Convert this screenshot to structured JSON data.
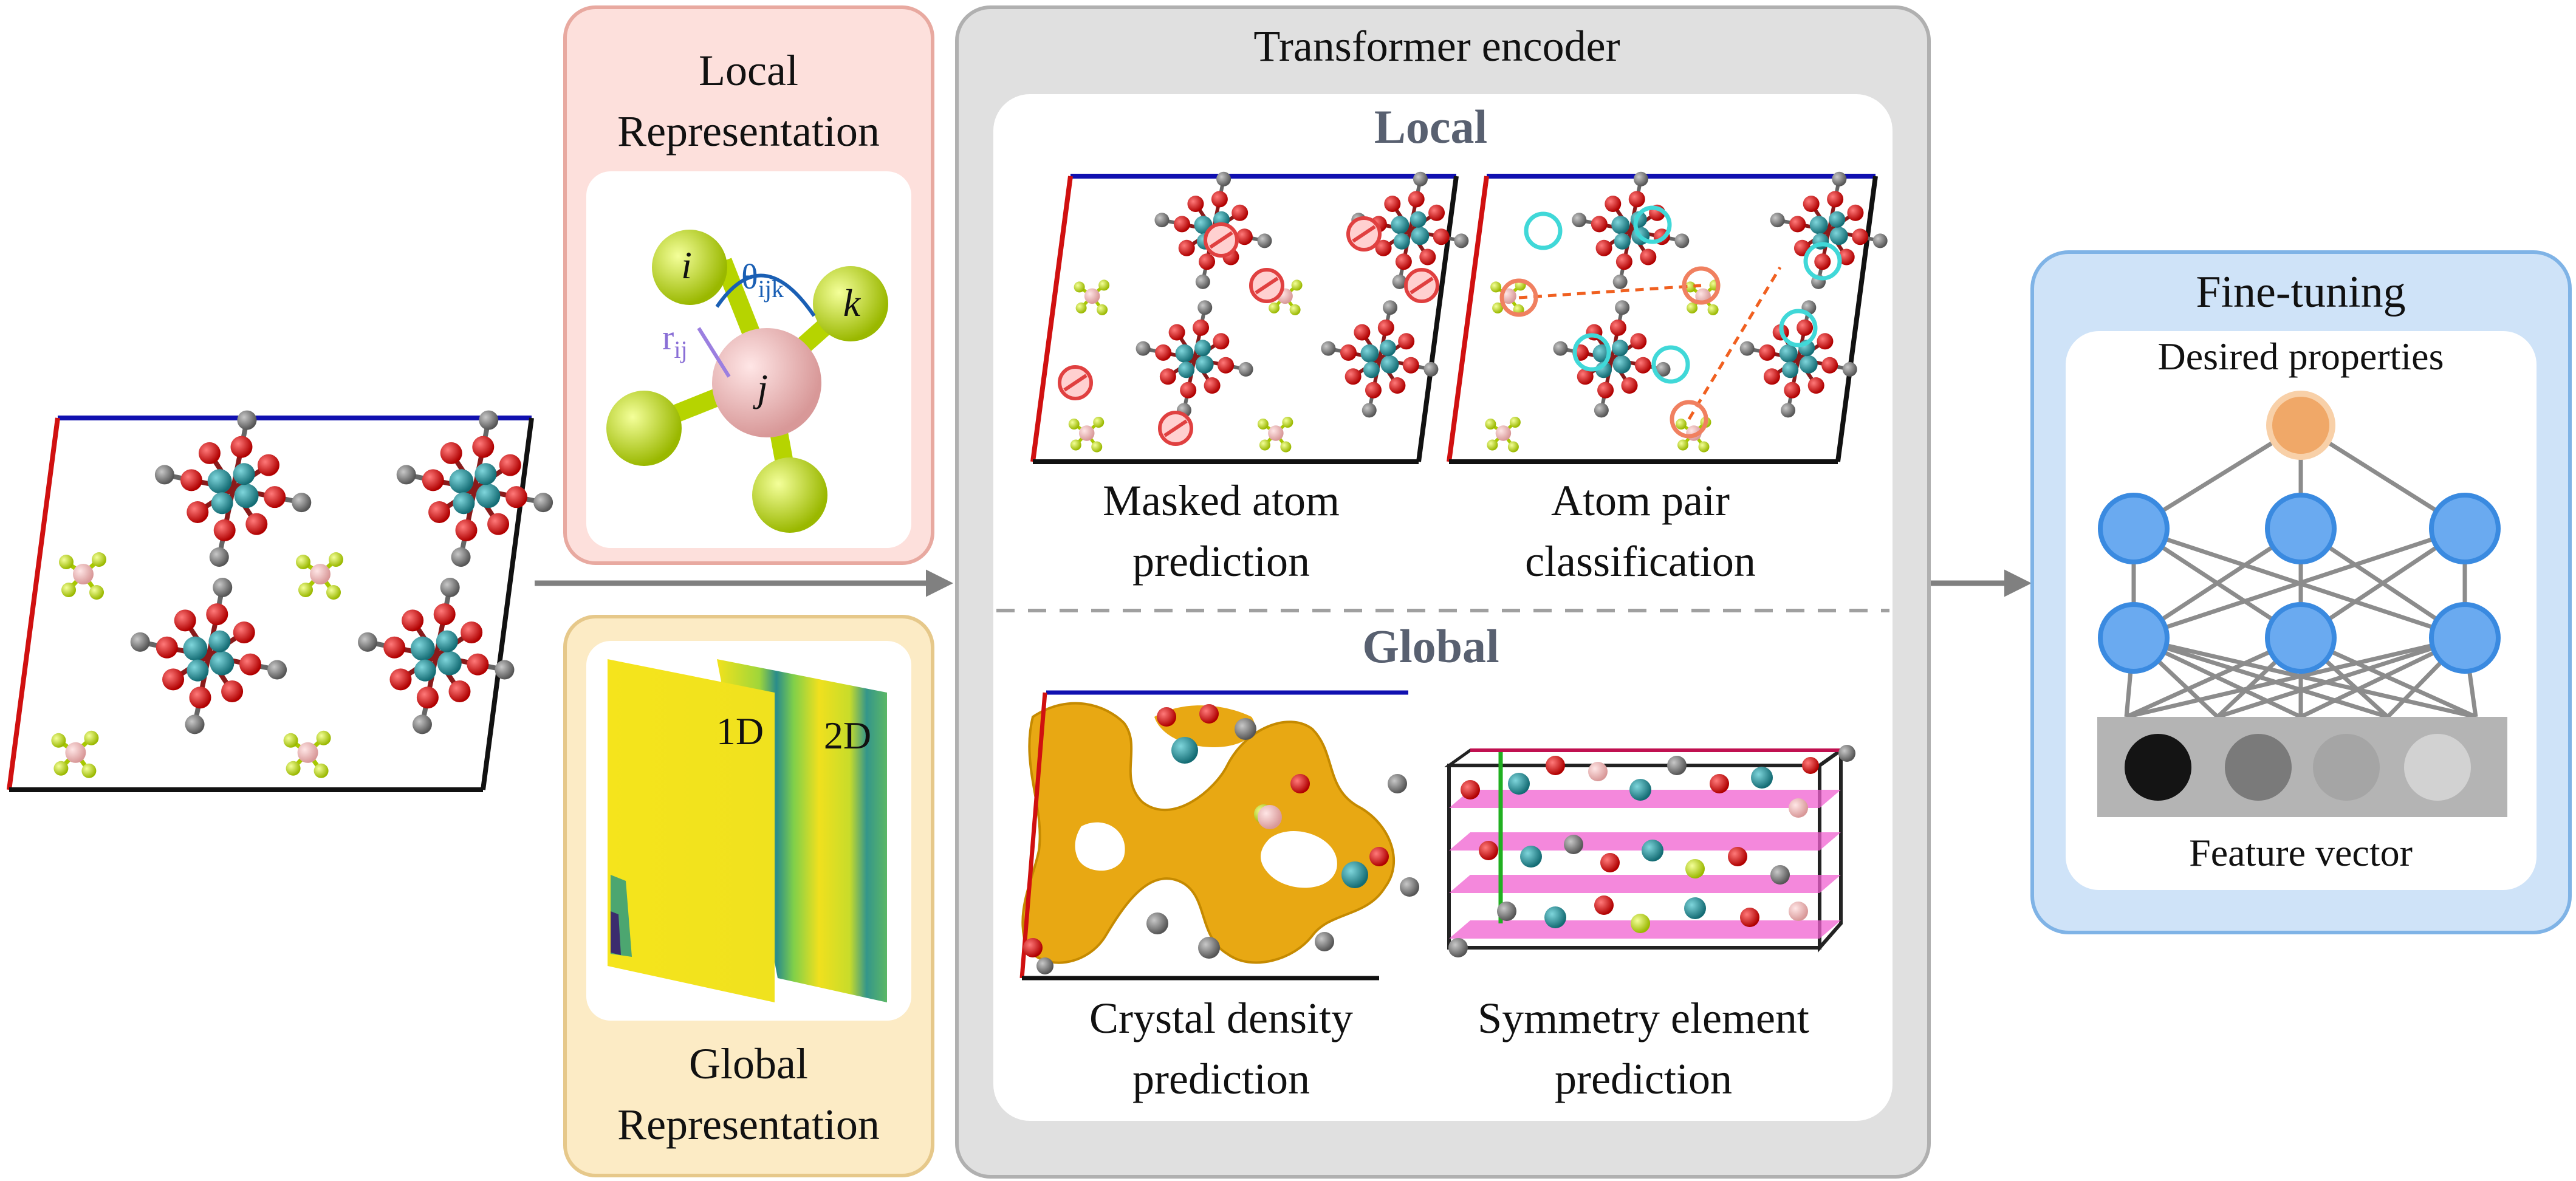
{
  "local_representation": {
    "title_line1": "Local",
    "title_line2": "Representation",
    "atom_i": "i",
    "atom_j": "j",
    "atom_k": "k",
    "bond_label": "r",
    "bond_sub": "ij",
    "angle_label": "θ",
    "angle_sub": "ijk"
  },
  "global_representation": {
    "title_line1": "Global",
    "title_line2": "Representation",
    "map_1d": "1D",
    "map_2d": "2D"
  },
  "transformer": {
    "title": "Transformer encoder",
    "local_heading": "Local",
    "global_heading": "Global",
    "tasks": {
      "masked_line1": "Masked atom",
      "masked_line2": "prediction",
      "pair_line1": "Atom pair",
      "pair_line2": "classification",
      "density_line1": "Crystal density",
      "density_line2": "prediction",
      "symmetry_line1": "Symmetry element",
      "symmetry_line2": "prediction"
    }
  },
  "finetuning": {
    "title": "Fine-tuning",
    "desired": "Desired properties",
    "feature": "Feature vector"
  },
  "colors": {
    "local_panel": "#fde0dc",
    "local_border": "#e8a9a0",
    "global_panel": "#fcebc5",
    "global_border": "#e6c88a",
    "encoder_panel": "#e0e0e0",
    "finetune_panel": "#cfe3f8",
    "finetune_border": "#7fb3e6",
    "node_blue": "#6aaaf0",
    "node_orange": "#f0a868",
    "atom_teal": "#1e8c96",
    "atom_red": "#d01010",
    "atom_gray": "#7a7a7a",
    "atom_lime": "#c8e61e",
    "atom_pink": "#f2b8b8"
  }
}
